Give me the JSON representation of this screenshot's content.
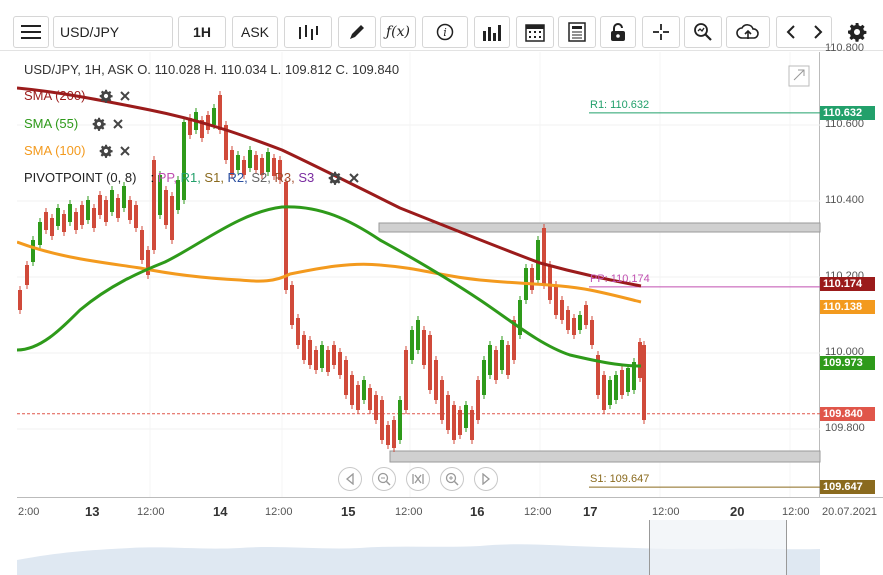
{
  "toolbar": {
    "symbol": "USD/JPY",
    "timeframe": "1H",
    "price_type": "ASK"
  },
  "header": {
    "ohlc": "USD/JPY, 1H, ASK   O. 110.028 H. 110.034 L. 109.812 C. 109.840"
  },
  "indicators": [
    {
      "label": "SMA (200)",
      "color": "#9b1b1b"
    },
    {
      "label": "SMA (55)",
      "color": "#2e9a1a"
    },
    {
      "label": "SMA (100)",
      "color": "#f39a1e"
    },
    {
      "label": "PIVOTPOINT (0, 8)",
      "color": "#222222"
    }
  ],
  "pivot_parts": [
    {
      "text": "PP,",
      "color": "#c04fb0"
    },
    {
      "text": "R1,",
      "color": "#22a06b"
    },
    {
      "text": "S1,",
      "color": "#8a6a1e"
    },
    {
      "text": "R2,",
      "color": "#2b4fa0"
    },
    {
      "text": "S2,",
      "color": "#666666"
    },
    {
      "text": "R3,",
      "color": "#a04b2b"
    },
    {
      "text": "S3",
      "color": "#7a2ba0"
    }
  ],
  "levels": {
    "r1": {
      "label": "R1: 110.632",
      "value": 110.632,
      "color": "#22a06b"
    },
    "pp": {
      "label": "PP: 110.174",
      "value": 110.174,
      "color": "#c04fb0"
    },
    "s1": {
      "label": "S1: 109.647",
      "value": 109.647,
      "color": "#8a6a1e"
    }
  },
  "price_tags": [
    {
      "text": "110.632",
      "color": "#22a06b",
      "value": 110.632
    },
    {
      "text": "110.174",
      "color": "#9b1b1b",
      "value": 110.174
    },
    {
      "text": "110.138",
      "color": "#f39a1e",
      "value": 110.138
    },
    {
      "text": "109.973",
      "color": "#2e9a1a",
      "value": 109.973
    },
    {
      "text": "109.840",
      "color": "#e0564a",
      "value": 109.84
    },
    {
      "text": "109.647",
      "color": "#8a6a1e",
      "value": 109.647
    }
  ],
  "y_ticks": [
    "110.800",
    "110.600",
    "110.400",
    "110.200",
    "110.000",
    "109.800"
  ],
  "x_ticks": [
    "2:00",
    "13",
    "12:00",
    "14",
    "12:00",
    "15",
    "12:00",
    "16",
    "12:00",
    "17",
    "12:00",
    "20",
    "12:00",
    "20.07.2021"
  ],
  "chart_data": {
    "type": "candlestick",
    "symbol": "USD/JPY",
    "timeframe": "1H",
    "close": 109.84,
    "pivot": {
      "R1": 110.632,
      "PP": 110.174,
      "S1": 109.647
    },
    "sma": {
      "SMA200": 110.174,
      "SMA55": 109.973,
      "SMA100": 110.138
    },
    "ylim": [
      109.64,
      110.82
    ]
  }
}
